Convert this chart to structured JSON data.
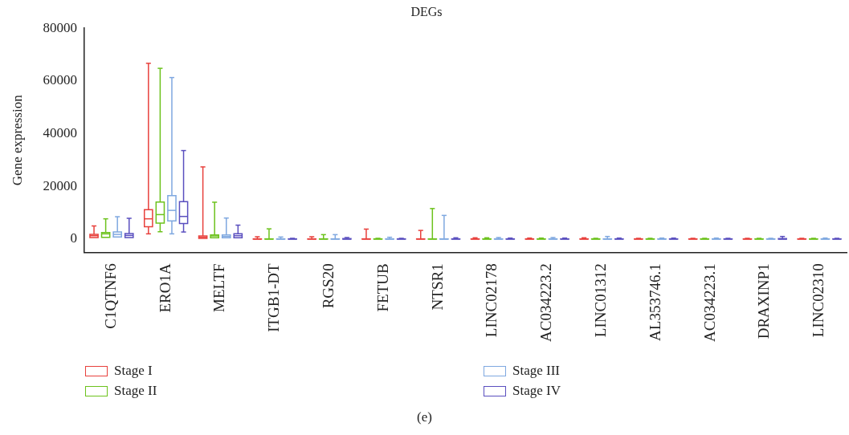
{
  "chart_data": {
    "type": "box",
    "title": "DEGs",
    "ylabel": "Gene expression",
    "categories": [
      "C1QTNF6",
      "ERO1A",
      "MELTF",
      "ITGB1-DT",
      "RGS20",
      "FETUB",
      "NTSR1",
      "LINC02178",
      "AC034223.2",
      "LINC01312",
      "AL353746.1",
      "AC034223.1",
      "DRAXINP1",
      "LINC02310"
    ],
    "ylim": [
      -5000,
      80000
    ],
    "yticks": [
      0,
      20000,
      40000,
      60000,
      80000
    ],
    "legend": "bottom",
    "annotations": [
      "(e)"
    ],
    "series": [
      {
        "name": "Stage I",
        "color": "#e8403c",
        "boxes": [
          {
            "low": 600,
            "q1": 600,
            "median": 1300,
            "q3": 1800,
            "high": 5000
          },
          {
            "low": 2000,
            "q1": 4700,
            "median": 7700,
            "q3": 11200,
            "high": 66700
          },
          {
            "low": 300,
            "q1": 300,
            "median": 700,
            "q3": 1200,
            "high": 27400
          },
          {
            "low": 0,
            "q1": 0,
            "median": 50,
            "q3": 100,
            "high": 900
          },
          {
            "low": 0,
            "q1": 0,
            "median": 50,
            "q3": 100,
            "high": 900
          },
          {
            "low": 0,
            "q1": 0,
            "median": 50,
            "q3": 100,
            "high": 3800
          },
          {
            "low": 0,
            "q1": 0,
            "median": 50,
            "q3": 100,
            "high": 3300
          },
          {
            "low": 0,
            "q1": 0,
            "median": 50,
            "q3": 100,
            "high": 500
          },
          {
            "low": 0,
            "q1": 0,
            "median": 50,
            "q3": 100,
            "high": 400
          },
          {
            "low": 0,
            "q1": 0,
            "median": 50,
            "q3": 100,
            "high": 500
          },
          {
            "low": 0,
            "q1": 0,
            "median": 50,
            "q3": 100,
            "high": 300
          },
          {
            "low": 0,
            "q1": 0,
            "median": 50,
            "q3": 100,
            "high": 300
          },
          {
            "low": 0,
            "q1": 0,
            "median": 50,
            "q3": 100,
            "high": 300
          },
          {
            "low": 0,
            "q1": 0,
            "median": 50,
            "q3": 100,
            "high": 300
          }
        ]
      },
      {
        "name": "Stage II",
        "color": "#6cc21c",
        "boxes": [
          {
            "low": 700,
            "q1": 700,
            "median": 2000,
            "q3": 2500,
            "high": 7700
          },
          {
            "low": 2800,
            "q1": 6100,
            "median": 9300,
            "q3": 14100,
            "high": 64800
          },
          {
            "low": 500,
            "q1": 500,
            "median": 1200,
            "q3": 1600,
            "high": 14000
          },
          {
            "low": 0,
            "q1": 0,
            "median": 50,
            "q3": 100,
            "high": 3900
          },
          {
            "low": 0,
            "q1": 0,
            "median": 50,
            "q3": 100,
            "high": 1700
          },
          {
            "low": 0,
            "q1": 0,
            "median": 50,
            "q3": 100,
            "high": 300
          },
          {
            "low": 0,
            "q1": 0,
            "median": 50,
            "q3": 100,
            "high": 11600
          },
          {
            "low": 0,
            "q1": 0,
            "median": 50,
            "q3": 100,
            "high": 500
          },
          {
            "low": 0,
            "q1": 0,
            "median": 50,
            "q3": 100,
            "high": 400
          },
          {
            "low": 0,
            "q1": 0,
            "median": 50,
            "q3": 100,
            "high": 300
          },
          {
            "low": 0,
            "q1": 0,
            "median": 50,
            "q3": 100,
            "high": 300
          },
          {
            "low": 0,
            "q1": 0,
            "median": 50,
            "q3": 100,
            "high": 300
          },
          {
            "low": 0,
            "q1": 0,
            "median": 50,
            "q3": 100,
            "high": 300
          },
          {
            "low": 0,
            "q1": 0,
            "median": 50,
            "q3": 100,
            "high": 300
          }
        ]
      },
      {
        "name": "Stage III",
        "color": "#7fa8e0",
        "boxes": [
          {
            "low": 800,
            "q1": 800,
            "median": 1800,
            "q3": 2700,
            "high": 8500
          },
          {
            "low": 2000,
            "q1": 6900,
            "median": 10900,
            "q3": 16500,
            "high": 61300
          },
          {
            "low": 500,
            "q1": 500,
            "median": 1000,
            "q3": 1600,
            "high": 8000
          },
          {
            "low": 0,
            "q1": 0,
            "median": 50,
            "q3": 100,
            "high": 800
          },
          {
            "low": 0,
            "q1": 0,
            "median": 50,
            "q3": 100,
            "high": 1700
          },
          {
            "low": 0,
            "q1": 0,
            "median": 50,
            "q3": 100,
            "high": 700
          },
          {
            "low": 0,
            "q1": 0,
            "median": 50,
            "q3": 100,
            "high": 9000
          },
          {
            "low": 0,
            "q1": 0,
            "median": 50,
            "q3": 100,
            "high": 600
          },
          {
            "low": 0,
            "q1": 0,
            "median": 50,
            "q3": 100,
            "high": 600
          },
          {
            "low": 0,
            "q1": 0,
            "median": 50,
            "q3": 100,
            "high": 1000
          },
          {
            "low": 0,
            "q1": 0,
            "median": 50,
            "q3": 100,
            "high": 400
          },
          {
            "low": 0,
            "q1": 0,
            "median": 50,
            "q3": 100,
            "high": 400
          },
          {
            "low": 0,
            "q1": 0,
            "median": 50,
            "q3": 100,
            "high": 300
          },
          {
            "low": 0,
            "q1": 0,
            "median": 50,
            "q3": 100,
            "high": 400
          }
        ]
      },
      {
        "name": "Stage IV",
        "color": "#5a4fbf",
        "boxes": [
          {
            "low": 600,
            "q1": 600,
            "median": 1400,
            "q3": 2100,
            "high": 7900
          },
          {
            "low": 2700,
            "q1": 5900,
            "median": 8600,
            "q3": 14200,
            "high": 33600
          },
          {
            "low": 500,
            "q1": 500,
            "median": 1300,
            "q3": 2000,
            "high": 5300
          },
          {
            "low": 0,
            "q1": 0,
            "median": 50,
            "q3": 100,
            "high": 300
          },
          {
            "low": 0,
            "q1": 0,
            "median": 50,
            "q3": 200,
            "high": 600
          },
          {
            "low": 0,
            "q1": 0,
            "median": 50,
            "q3": 100,
            "high": 300
          },
          {
            "low": 0,
            "q1": 0,
            "median": 50,
            "q3": 100,
            "high": 500
          },
          {
            "low": 0,
            "q1": 0,
            "median": 50,
            "q3": 100,
            "high": 400
          },
          {
            "low": 0,
            "q1": 0,
            "median": 50,
            "q3": 100,
            "high": 400
          },
          {
            "low": 0,
            "q1": 0,
            "median": 50,
            "q3": 100,
            "high": 400
          },
          {
            "low": 0,
            "q1": 0,
            "median": 50,
            "q3": 100,
            "high": 400
          },
          {
            "low": 0,
            "q1": 0,
            "median": 50,
            "q3": 100,
            "high": 300
          },
          {
            "low": 0,
            "q1": 0,
            "median": 50,
            "q3": 200,
            "high": 1000
          },
          {
            "low": 0,
            "q1": 0,
            "median": 50,
            "q3": 100,
            "high": 300
          }
        ]
      }
    ]
  }
}
